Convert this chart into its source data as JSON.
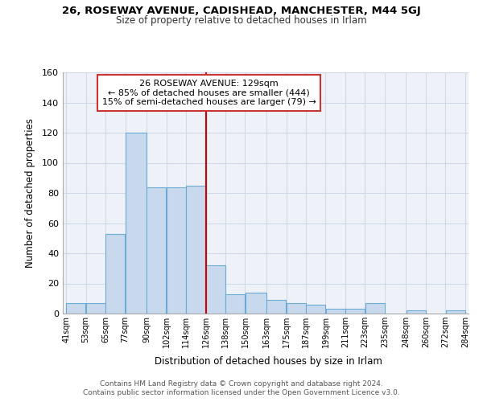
{
  "title1": "26, ROSEWAY AVENUE, CADISHEAD, MANCHESTER, M44 5GJ",
  "title2": "Size of property relative to detached houses in Irlam",
  "xlabel": "Distribution of detached houses by size in Irlam",
  "ylabel": "Number of detached properties",
  "bar_left_edges": [
    41,
    53,
    65,
    77,
    90,
    102,
    114,
    126,
    138,
    150,
    163,
    175,
    187,
    199,
    211,
    223,
    235,
    248,
    260,
    272
  ],
  "bar_widths": [
    12,
    12,
    12,
    13,
    12,
    12,
    12,
    12,
    12,
    13,
    12,
    12,
    12,
    12,
    12,
    12,
    13,
    12,
    12,
    12
  ],
  "bar_heights": [
    7,
    7,
    53,
    120,
    84,
    84,
    85,
    32,
    13,
    14,
    9,
    7,
    6,
    3,
    3,
    7,
    0,
    2,
    0,
    2
  ],
  "bar_color": "#c8d9ee",
  "bar_edgecolor": "#6aaad4",
  "tick_labels": [
    "41sqm",
    "53sqm",
    "65sqm",
    "77sqm",
    "90sqm",
    "102sqm",
    "114sqm",
    "126sqm",
    "138sqm",
    "150sqm",
    "163sqm",
    "175sqm",
    "187sqm",
    "199sqm",
    "211sqm",
    "223sqm",
    "235sqm",
    "248sqm",
    "260sqm",
    "272sqm",
    "284sqm"
  ],
  "vline_x": 126,
  "vline_color": "#cc0000",
  "ylim": [
    0,
    160
  ],
  "yticks": [
    0,
    20,
    40,
    60,
    80,
    100,
    120,
    140,
    160
  ],
  "annotation_title": "26 ROSEWAY AVENUE: 129sqm",
  "annotation_line1": "← 85% of detached houses are smaller (444)",
  "annotation_line2": "15% of semi-detached houses are larger (79) →",
  "footer1": "Contains HM Land Registry data © Crown copyright and database right 2024.",
  "footer2": "Contains public sector information licensed under the Open Government Licence v3.0.",
  "grid_color": "#d0d8e8",
  "bg_color": "#ffffff",
  "plot_bg_color": "#eef2f8"
}
